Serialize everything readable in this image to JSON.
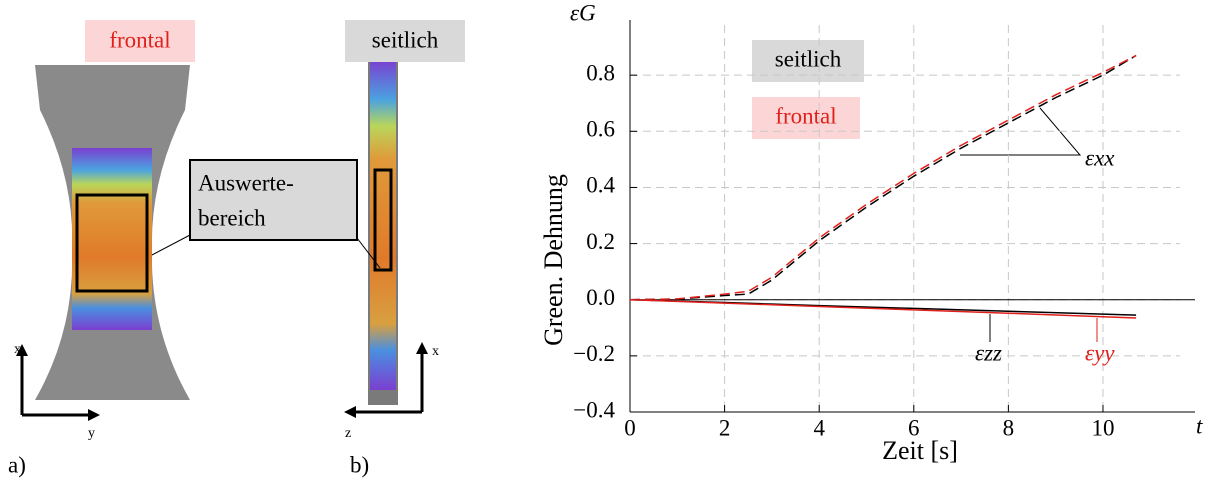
{
  "figure": {
    "panel_a": {
      "view": "frontal",
      "label": "a)",
      "axis_x": "x",
      "axis_y": "y"
    },
    "panel_b": {
      "view": "seitlich",
      "label": "b)",
      "axis_x": "x",
      "axis_z": "z"
    },
    "region_label": [
      "Auswerte-",
      "bereich"
    ]
  },
  "chart_data": {
    "type": "line",
    "y_label": "Green. Dehnung",
    "x_label": "Zeit [s]",
    "y_symbol": "εG",
    "x_symbol": "t",
    "annotations": {
      "side": "seitlich",
      "front": "frontal"
    },
    "xlim": [
      0,
      11.84
    ],
    "ylim": [
      -0.4,
      1.05
    ],
    "xticks": [
      0,
      2,
      4,
      6,
      8,
      10
    ],
    "yticks": [
      {
        "value": -0.4,
        "label": "−0.4"
      },
      {
        "value": -0.2,
        "label": "−0.2"
      },
      {
        "value": 0,
        "label": "0.0"
      },
      0.2,
      0.4,
      0.6,
      0.8
    ],
    "grid": true,
    "series": [
      {
        "name": "εxx",
        "color": "#000000",
        "linestyle": "dashed",
        "x": [
          0,
          1,
          2,
          2.5,
          3,
          4,
          5,
          6,
          7,
          8,
          9,
          10,
          10.7
        ],
        "values": [
          0,
          0.002,
          0.015,
          0.02,
          0.07,
          0.21,
          0.33,
          0.44,
          0.54,
          0.63,
          0.72,
          0.8,
          0.87
        ]
      },
      {
        "name": "εxx",
        "color": "#e0201b",
        "linestyle": "dashed",
        "x": [
          0,
          1,
          2,
          2.5,
          3,
          4,
          5,
          6,
          7,
          8,
          9,
          10,
          10.7
        ],
        "values": [
          0,
          0.003,
          0.02,
          0.03,
          0.08,
          0.22,
          0.34,
          0.45,
          0.55,
          0.64,
          0.73,
          0.81,
          0.87
        ]
      },
      {
        "name": "εzz",
        "color": "#000000",
        "linestyle": "solid",
        "x": [
          0,
          2,
          4,
          6,
          8,
          10.7
        ],
        "values": [
          0,
          -0.01,
          -0.021,
          -0.031,
          -0.041,
          -0.055
        ]
      },
      {
        "name": "εyy",
        "color": "#e0201b",
        "linestyle": "solid",
        "x": [
          0,
          2,
          4,
          6,
          8,
          10.7
        ],
        "values": [
          0,
          -0.012,
          -0.024,
          -0.036,
          -0.048,
          -0.065
        ]
      }
    ]
  }
}
